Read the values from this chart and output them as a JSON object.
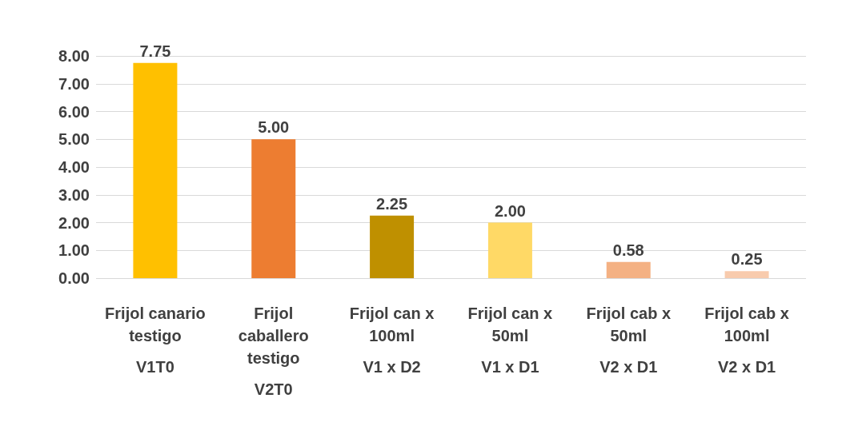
{
  "chart_data": {
    "type": "bar",
    "categories": [
      "Frijol canario testigo\nV1T0",
      "Frijol caballero testigo\nV2T0",
      "Frijol can x 100ml\nV1 x D2",
      "Frijol can x 50ml\nV1 x D1",
      "Frijol cab x 50ml\nV2 x D1",
      "Frijol cab x 100ml\nV2 x D1"
    ],
    "values": [
      7.75,
      5.0,
      2.25,
      2.0,
      0.58,
      0.25
    ],
    "colors": [
      "#ffc000",
      "#ed7d31",
      "#bf9000",
      "#ffd966",
      "#f4b183",
      "#f8cbad"
    ],
    "value_labels": [
      "7.75",
      "5.00",
      "2.25",
      "2.00",
      "0.58",
      "0.25"
    ],
    "ylim": [
      0,
      8
    ],
    "yticks": [
      {
        "value": 0,
        "label": "0.00"
      },
      {
        "value": 1,
        "label": "1.00"
      },
      {
        "value": 2,
        "label": "2.00"
      },
      {
        "value": 3,
        "label": "3.00"
      },
      {
        "value": 4,
        "label": "4.00"
      },
      {
        "value": 5,
        "label": "5.00"
      },
      {
        "value": 6,
        "label": "6.00"
      },
      {
        "value": 7,
        "label": "7.00"
      },
      {
        "value": 8,
        "label": "8.00"
      }
    ],
    "grid": "y"
  }
}
